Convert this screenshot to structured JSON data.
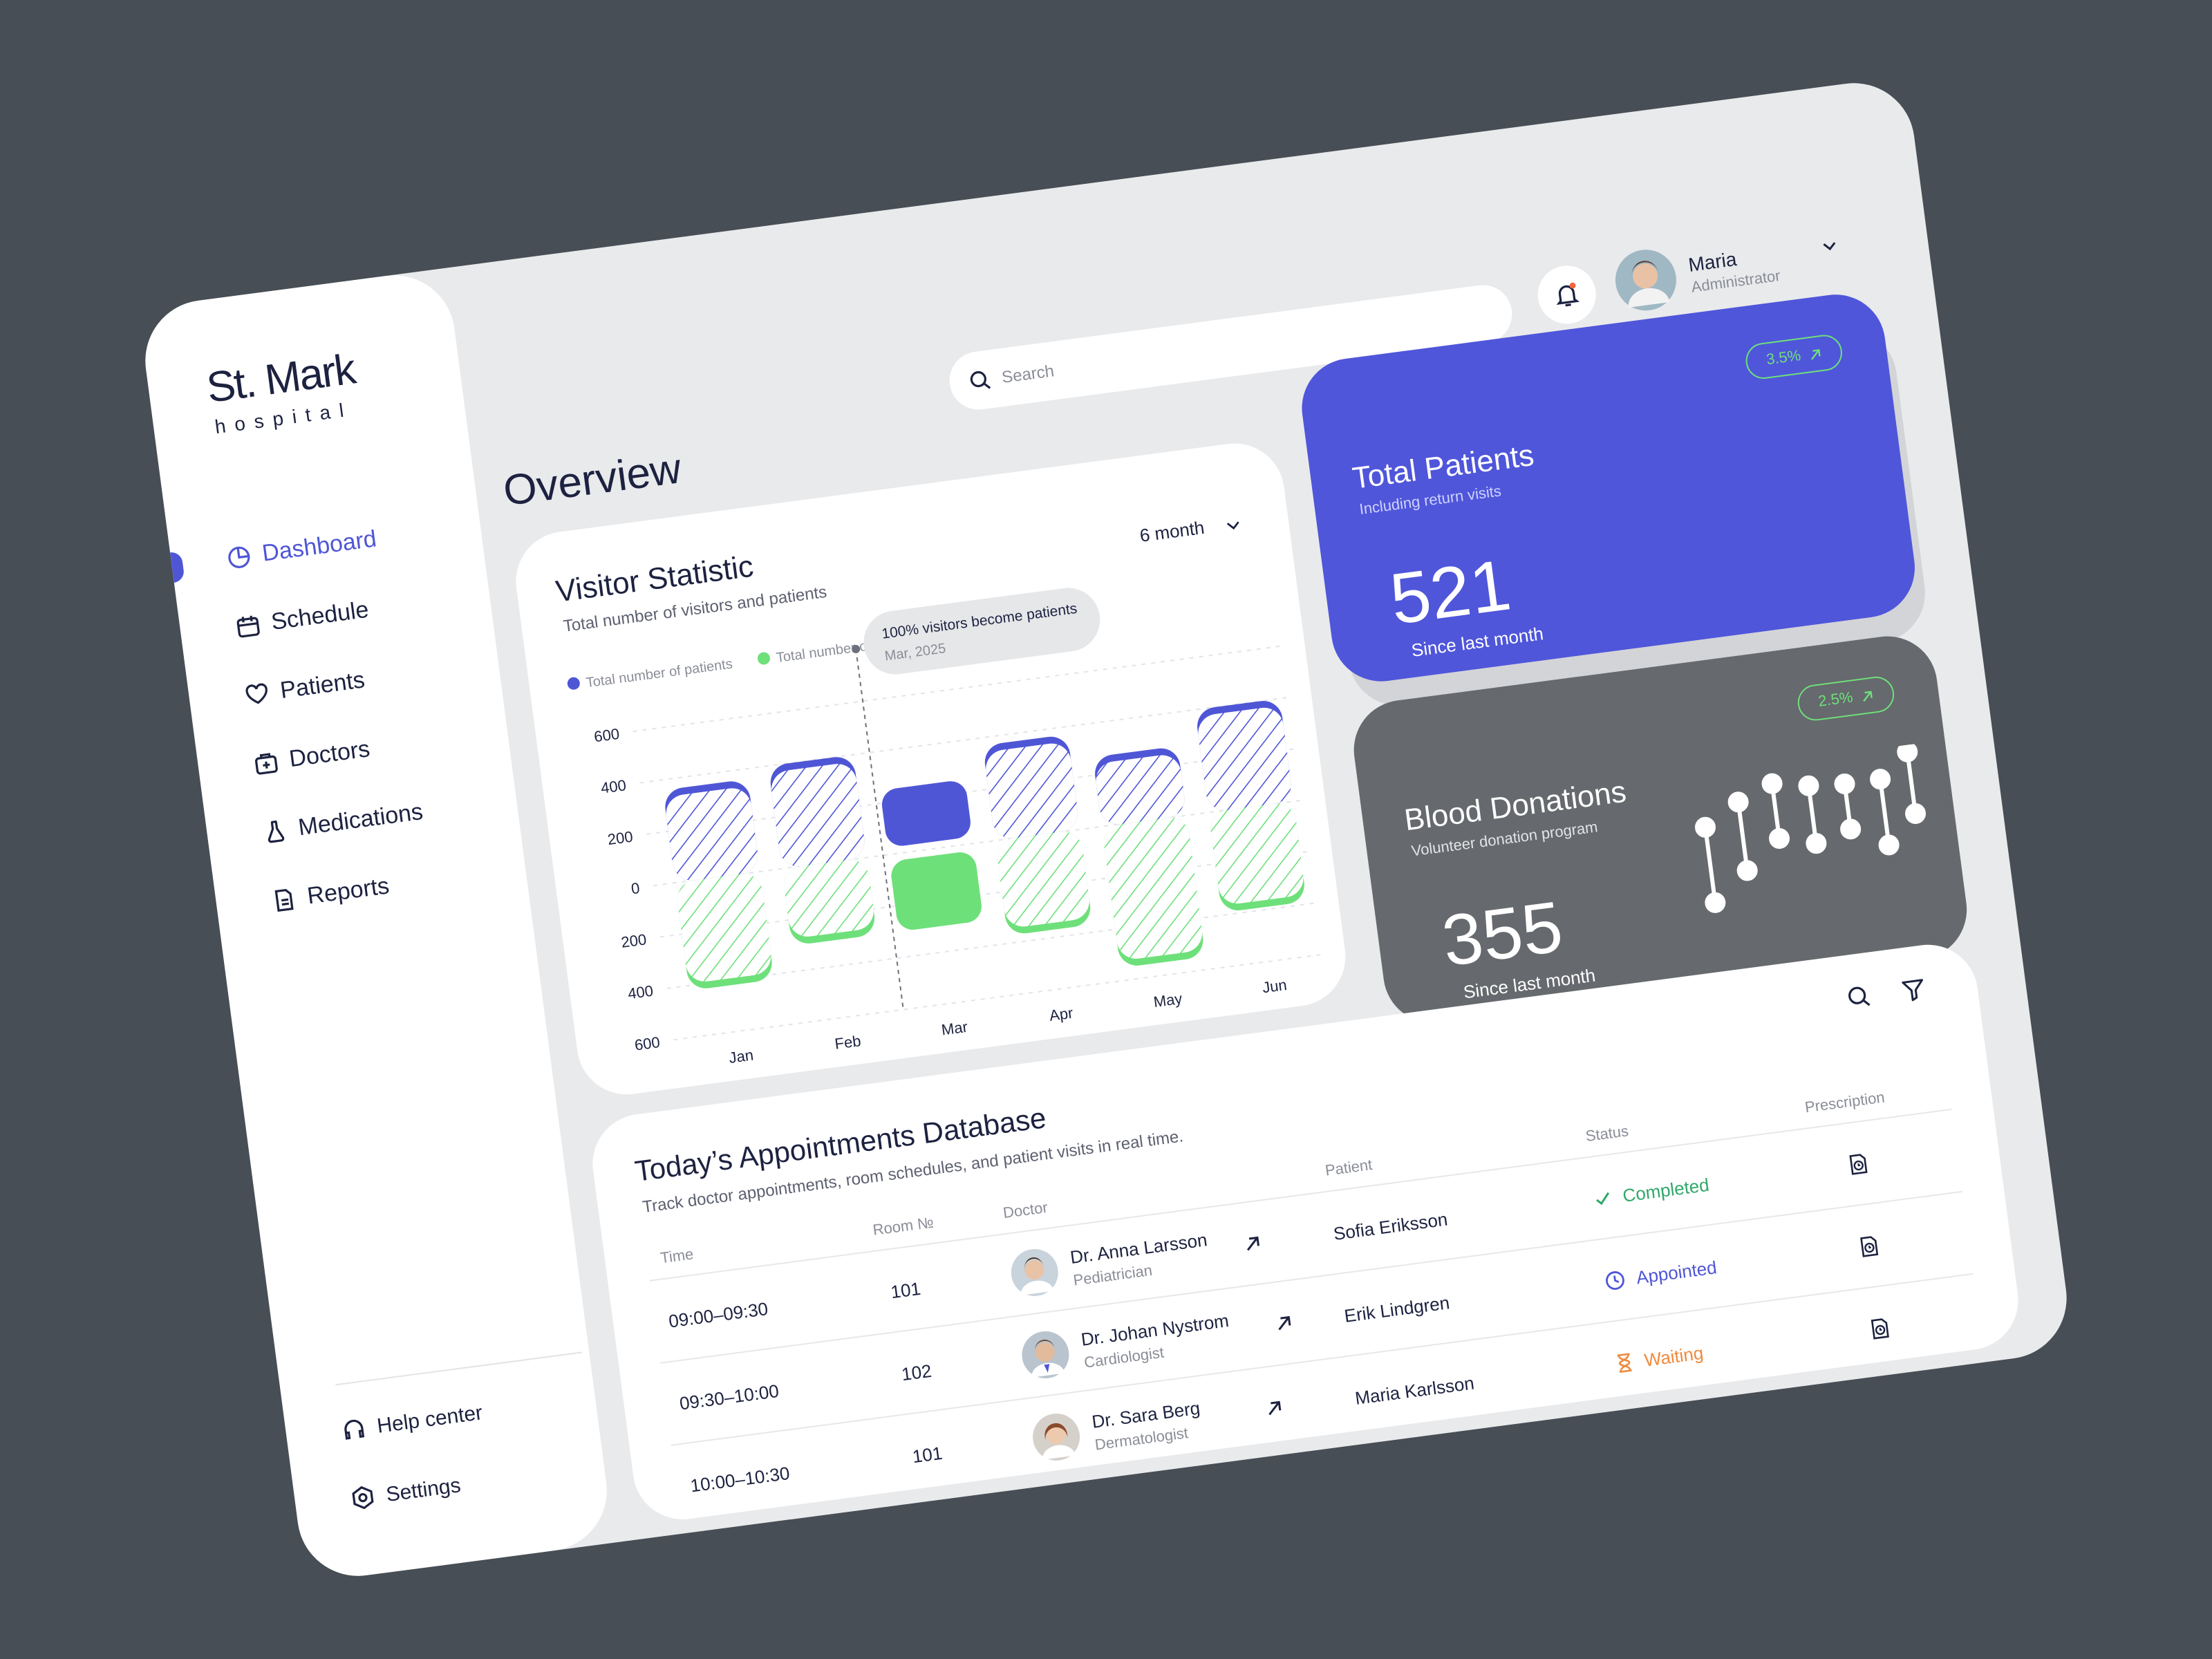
{
  "brand": {
    "name": "St. Mark",
    "tagline": "hospital"
  },
  "nav": [
    "Dashboard",
    "Schedule",
    "Patients",
    "Doctors",
    "Medications",
    "Reports"
  ],
  "footer_nav": [
    "Help center",
    "Settings"
  ],
  "search_placeholder": "Search",
  "user": {
    "name": "Maria",
    "role": "Administrator"
  },
  "page_title": "Overview",
  "chart_data": {
    "type": "bar",
    "title": "Visitor Statistic",
    "subtitle": "Total number of visitors and patients",
    "period": "6 month",
    "categories": [
      "Jan",
      "Feb",
      "Mar",
      "Apr",
      "May",
      "Jun"
    ],
    "series": [
      {
        "name": "Total number of  patients",
        "color": "#4f56d6",
        "values": [
          360,
          400,
          250,
          370,
          270,
          400
        ]
      },
      {
        "name": "Total number of visitors",
        "color": "#6ee07a",
        "values": [
          -420,
          -300,
          -300,
          -370,
          -550,
          -390
        ]
      }
    ],
    "ylim": [
      -600,
      600
    ],
    "yticks": [
      {
        "value": 600,
        "label": "600"
      },
      {
        "value": 400,
        "label": "400"
      },
      {
        "value": 200,
        "label": "200"
      },
      0,
      {
        "value": -200,
        "label": "200"
      },
      {
        "value": -400,
        "label": "400"
      },
      {
        "value": -600,
        "label": "600"
      }
    ],
    "grid": true,
    "highlight": 2,
    "tooltip": {
      "title": "100% visitors become patients",
      "subtitle": "Mar, 2025"
    }
  },
  "total_patients": {
    "title": "Total Patients",
    "subtitle": "Including return visits",
    "change": "3.5%",
    "value": "521",
    "caption": "Since last month"
  },
  "blood_donations": {
    "title": "Blood Donations",
    "subtitle": "Volunteer donation program",
    "change": "2.5%",
    "value": "355",
    "caption": "Since last month"
  },
  "appointments": {
    "title": "Today’s Appointments Database",
    "subtitle": "Track doctor appointments, room schedules, and patient visits in real time.",
    "columns": [
      "Time",
      "Room №",
      "Doctor",
      "Patient",
      "Status",
      "Prescription"
    ],
    "rows": [
      {
        "time": "09:00–09:30",
        "room": "101",
        "doctor": "Dr. Anna Larsson",
        "specialty": "Pediatrician",
        "patient": "Sofia Eriksson",
        "status": "Completed"
      },
      {
        "time": "09:30–10:00",
        "room": "102",
        "doctor": "Dr. Johan Nystrom",
        "specialty": "Cardiologist",
        "patient": "Erik Lindgren",
        "status": "Appointed"
      },
      {
        "time": "10:00–10:30",
        "room": "101",
        "doctor": "Dr. Sara Berg",
        "specialty": "Dermatologist",
        "patient": "Maria Karlsson",
        "status": "Waiting"
      }
    ]
  }
}
